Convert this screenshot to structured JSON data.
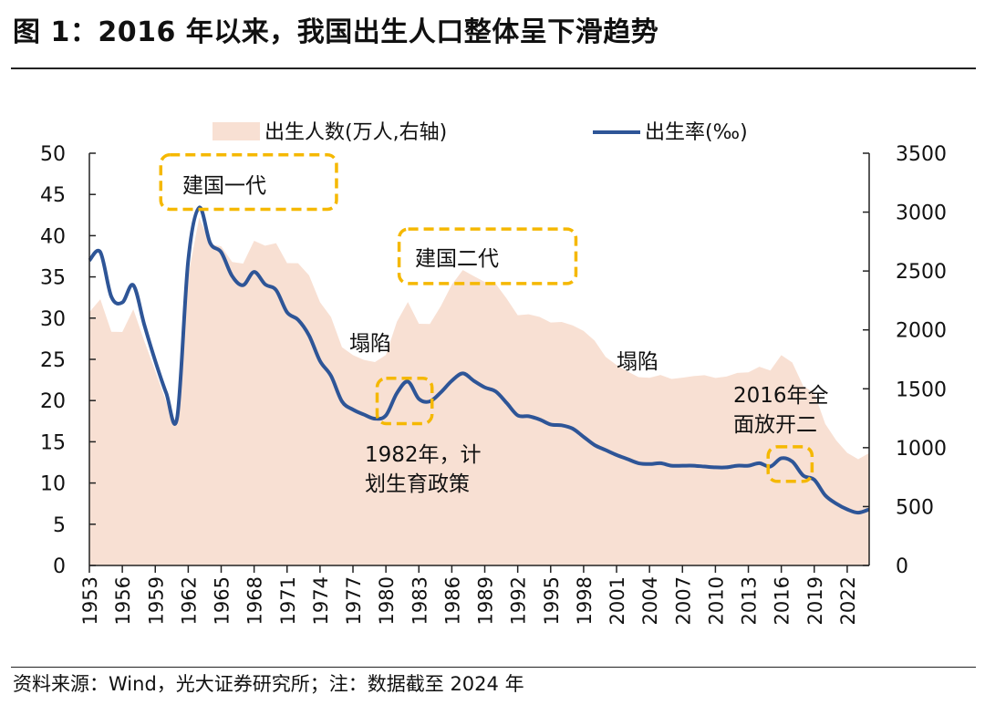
{
  "title": "图 1：2016 年以来，我国出生人口整体呈下滑趋势",
  "footer": "资料来源：Wind，光大证券研究所；注：数据截至 2024 年",
  "chart_data": {
    "type": "area+line",
    "title": "",
    "legend_position": "top",
    "x": [
      1953,
      1954,
      1955,
      1956,
      1957,
      1958,
      1959,
      1960,
      1961,
      1962,
      1963,
      1964,
      1965,
      1966,
      1967,
      1968,
      1969,
      1970,
      1971,
      1972,
      1973,
      1974,
      1975,
      1976,
      1977,
      1978,
      1979,
      1980,
      1981,
      1982,
      1983,
      1984,
      1985,
      1986,
      1987,
      1988,
      1989,
      1990,
      1991,
      1992,
      1993,
      1994,
      1995,
      1996,
      1997,
      1998,
      1999,
      2000,
      2001,
      2002,
      2003,
      2004,
      2005,
      2006,
      2007,
      2008,
      2009,
      2010,
      2011,
      2012,
      2013,
      2014,
      2015,
      2016,
      2017,
      2018,
      2019,
      2020,
      2021,
      2022,
      2023,
      2024
    ],
    "x_tick_labels": [
      "1953",
      "1956",
      "1959",
      "1962",
      "1965",
      "1968",
      "1971",
      "1974",
      "1977",
      "1980",
      "1983",
      "1986",
      "1989",
      "1992",
      "1995",
      "1998",
      "2001",
      "2004",
      "2007",
      "2010",
      "2013",
      "2016",
      "2019",
      "2022"
    ],
    "y_left": {
      "lim": [
        0,
        50
      ],
      "ticks": [
        "0",
        "5",
        "10",
        "15",
        "20",
        "25",
        "30",
        "35",
        "40",
        "45",
        "50"
      ]
    },
    "y_right": {
      "lim": [
        0,
        3500
      ],
      "ticks": [
        "0",
        "500",
        "1000",
        "1500",
        "2000",
        "2500",
        "3000",
        "3500"
      ]
    },
    "series": [
      {
        "name": "出生人数(万人,右轴)",
        "type": "area",
        "axis": "right",
        "color": "#F8E0D3",
        "values": [
          2151,
          2260,
          1984,
          1982,
          2175,
          1906,
          1650,
          1389,
          1190,
          2460,
          2954,
          2729,
          2709,
          2577,
          2563,
          2757,
          2715,
          2736,
          2567,
          2566,
          2463,
          2235,
          2109,
          1853,
          1786,
          1745,
          1727,
          1787,
          2069,
          2237,
          2052,
          2050,
          2202,
          2384,
          2508,
          2457,
          2407,
          2391,
          2265,
          2125,
          2132,
          2110,
          2063,
          2067,
          2038,
          1991,
          1909,
          1771,
          1702,
          1647,
          1599,
          1593,
          1617,
          1584,
          1594,
          1608,
          1615,
          1592,
          1604,
          1635,
          1640,
          1687,
          1655,
          1786,
          1723,
          1523,
          1465,
          1202,
          1062,
          956,
          902,
          954
        ]
      },
      {
        "name": "出生率(‰)",
        "type": "line",
        "axis": "left",
        "color": "#2E5597",
        "values": [
          37.0,
          38.0,
          32.6,
          31.9,
          34.0,
          29.2,
          24.8,
          20.9,
          18.0,
          37.0,
          43.4,
          39.1,
          38.0,
          35.1,
          34.0,
          35.6,
          34.1,
          33.4,
          30.7,
          29.8,
          27.9,
          24.8,
          23.0,
          19.9,
          18.9,
          18.3,
          17.8,
          18.2,
          20.9,
          22.3,
          20.2,
          19.9,
          21.0,
          22.4,
          23.3,
          22.4,
          21.6,
          21.1,
          19.7,
          18.2,
          18.1,
          17.7,
          17.1,
          17.0,
          16.6,
          15.6,
          14.6,
          14.0,
          13.4,
          12.9,
          12.4,
          12.3,
          12.4,
          12.1,
          12.1,
          12.1,
          12.0,
          11.9,
          11.9,
          12.1,
          12.1,
          12.4,
          12.0,
          13.0,
          12.6,
          10.9,
          10.4,
          8.5,
          7.5,
          6.8,
          6.4,
          6.8
        ]
      }
    ],
    "annotations": [
      {
        "text": [
          "建国一代"
        ],
        "box_years": [
          1959.5,
          1975.5
        ],
        "box_rate": [
          43.2,
          49.8
        ]
      },
      {
        "text": [
          "建国二代"
        ],
        "box_years": [
          1981.2,
          1997.3
        ],
        "box_rate": [
          34.2,
          40.8
        ]
      },
      {
        "text": [
          "塌陷"
        ],
        "at_year": 1977.5,
        "at_rate": 26.5
      },
      {
        "text": [
          "塌陷"
        ],
        "at_year": 2001,
        "at_rate": 24.5
      },
      {
        "text": [
          "1982年，计",
          "划生育政策"
        ],
        "box_years": [
          1979.2,
          1984.2
        ],
        "box_rate": [
          17.2,
          22.7
        ]
      },
      {
        "text": [
          "2016年全",
          "面放开二"
        ],
        "box_years": [
          2014.8,
          2018.8
        ],
        "box_rate": [
          10.2,
          14.4
        ]
      }
    ],
    "annotation_color": "#F5B800"
  }
}
